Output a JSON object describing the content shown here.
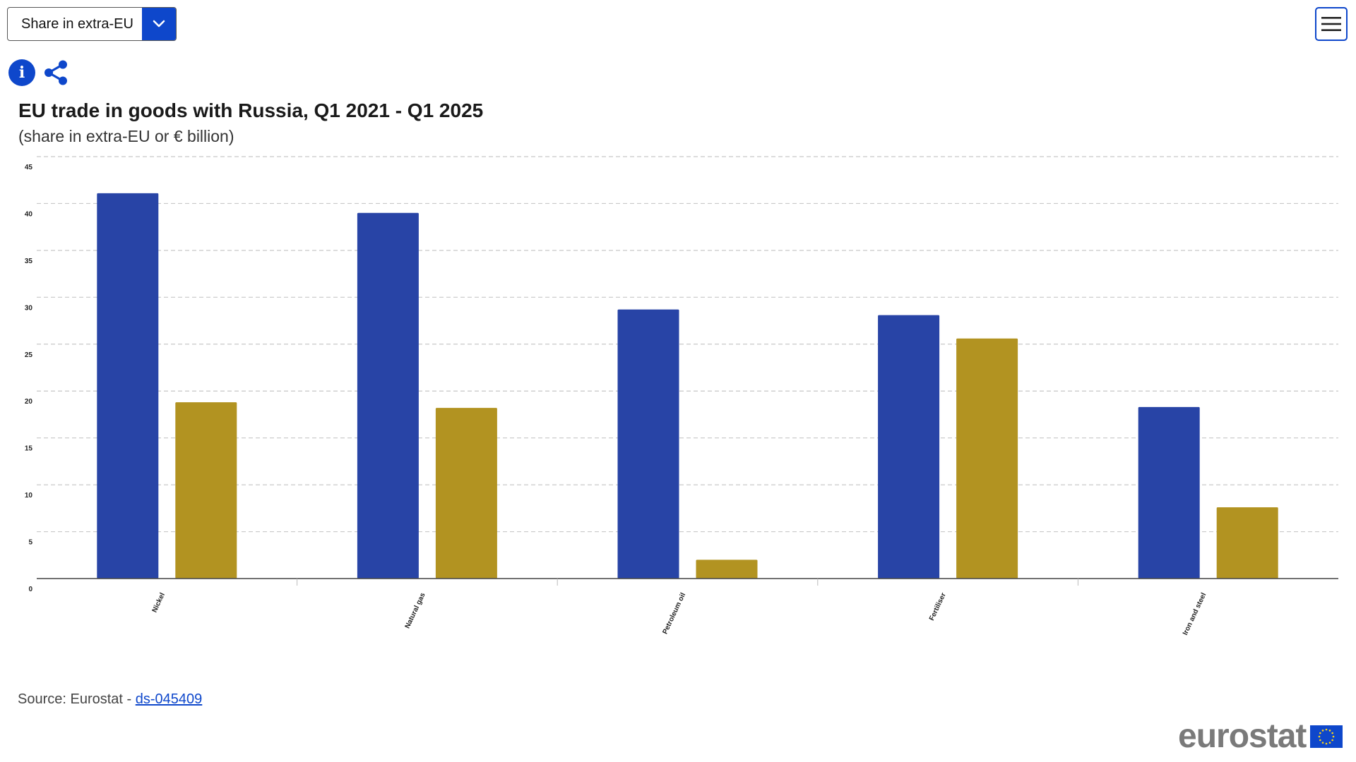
{
  "controls": {
    "dropdown_value": "Share in extra-EU"
  },
  "icons": {
    "dropdown_toggle": "chevron-down-icon",
    "menu": "hamburger-menu-icon",
    "info": "info-icon",
    "share": "share-icon",
    "info_glyph": "i"
  },
  "colors": {
    "accent": "#0e47cb",
    "series_1": "#2844a6",
    "series_2": "#b29321"
  },
  "source": {
    "prefix": "Source: Eurostat - ",
    "link_text": "ds-045409"
  },
  "logo": {
    "text": "eurostat"
  },
  "chart_data": {
    "type": "bar",
    "title": "EU trade in goods with Russia, Q1 2021 - Q1 2025",
    "subtitle": "(share in extra-EU or € billion)",
    "xlabel": "",
    "ylabel": "",
    "categories": [
      "Nickel",
      "Natural gas",
      "Petroleum oil",
      "Fertiliser",
      "Iron and steel"
    ],
    "series": [
      {
        "values": [
          41.1,
          39.0,
          28.7,
          28.1,
          18.3
        ],
        "color": "#2844a6"
      },
      {
        "values": [
          18.8,
          18.2,
          2.0,
          25.6,
          7.6
        ],
        "color": "#b29321"
      }
    ],
    "ylim": [
      0,
      45
    ],
    "yticks": [
      "0",
      "5",
      "10",
      "15",
      "20",
      "25",
      "30",
      "35",
      "40",
      "45"
    ],
    "grid": true,
    "legend": "none"
  }
}
